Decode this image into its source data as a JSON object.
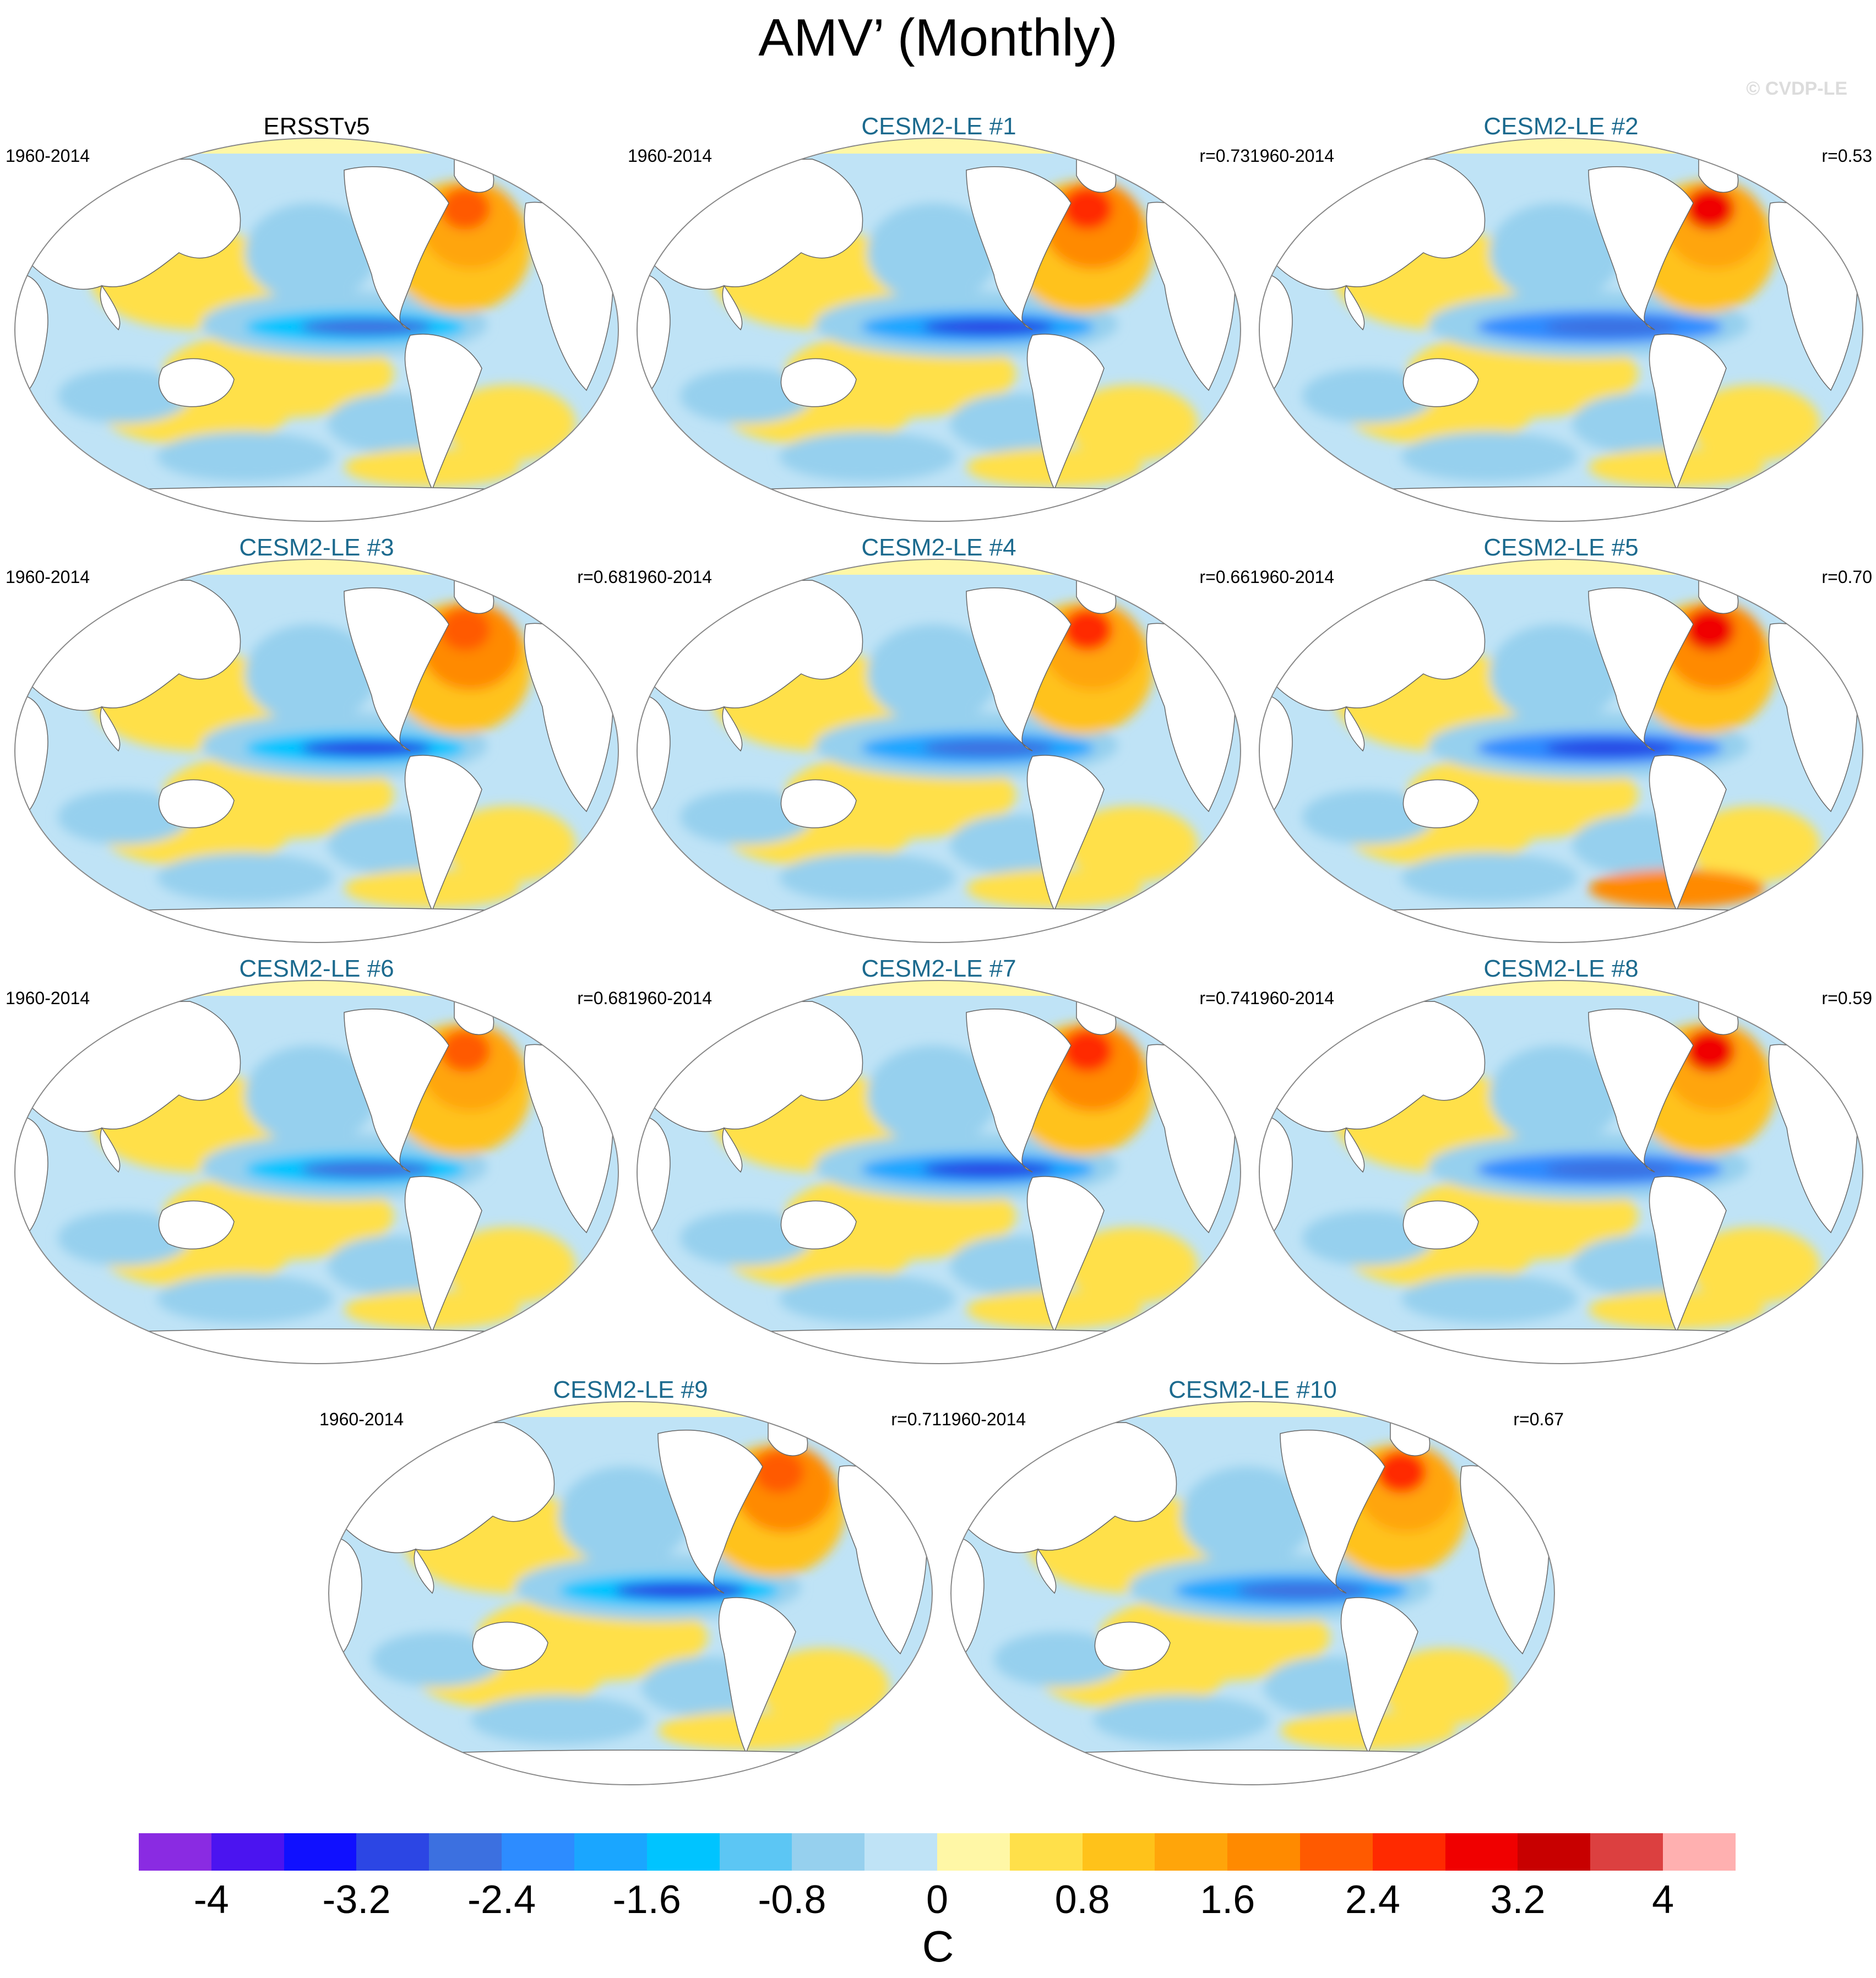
{
  "title": "AMV’ (Monthly)",
  "copyright": "© CVDP-LE",
  "panels": [
    {
      "name": "ERSSTv5",
      "years": "1960-2014",
      "r": "",
      "kind": "obs",
      "pattern": 0
    },
    {
      "name": "CESM2-LE #1",
      "years": "1960-2014",
      "r": "r=0.73",
      "kind": "model",
      "pattern": 1
    },
    {
      "name": "CESM2-LE #2",
      "years": "1960-2014",
      "r": "r=0.53",
      "kind": "model",
      "pattern": 2
    },
    {
      "name": "CESM2-LE #3",
      "years": "1960-2014",
      "r": "r=0.68",
      "kind": "model",
      "pattern": 3
    },
    {
      "name": "CESM2-LE #4",
      "years": "1960-2014",
      "r": "r=0.66",
      "kind": "model",
      "pattern": 4
    },
    {
      "name": "CESM2-LE #5",
      "years": "1960-2014",
      "r": "r=0.70",
      "kind": "model",
      "pattern": 5
    },
    {
      "name": "CESM2-LE #6",
      "years": "1960-2014",
      "r": "r=0.68",
      "kind": "model",
      "pattern": 6
    },
    {
      "name": "CESM2-LE #7",
      "years": "1960-2014",
      "r": "r=0.74",
      "kind": "model",
      "pattern": 7
    },
    {
      "name": "CESM2-LE #8",
      "years": "1960-2014",
      "r": "r=0.59",
      "kind": "model",
      "pattern": 8
    },
    {
      "name": "CESM2-LE #9",
      "years": "1960-2014",
      "r": "r=0.71",
      "kind": "model",
      "pattern": 9
    },
    {
      "name": "CESM2-LE #10",
      "years": "1960-2014",
      "r": "r=0.67",
      "kind": "model",
      "pattern": 10
    }
  ],
  "colorbar": {
    "unit": "C",
    "colors": [
      "#8a2be2",
      "#4b14f0",
      "#1010ff",
      "#2c46e4",
      "#3c70e0",
      "#2d8cff",
      "#1aa6ff",
      "#00c4ff",
      "#5cc6f4",
      "#96d0ee",
      "#bfe3f6",
      "#fff7a6",
      "#ffe04a",
      "#ffc21a",
      "#ffa50a",
      "#ff8a00",
      "#ff5a00",
      "#ff2a00",
      "#f00000",
      "#c80000",
      "#dc4040",
      "#ffb0b0"
    ],
    "ticks": [
      "-4",
      "-3.2",
      "-2.4",
      "-1.6",
      "-0.8",
      "0",
      "0.8",
      "1.6",
      "2.4",
      "3.2",
      "4"
    ],
    "tick_values": [
      -4,
      -3.2,
      -2.4,
      -1.6,
      -0.8,
      0,
      0.8,
      1.6,
      2.4,
      3.2,
      4
    ],
    "range": [
      -4.4,
      4.4
    ]
  }
}
